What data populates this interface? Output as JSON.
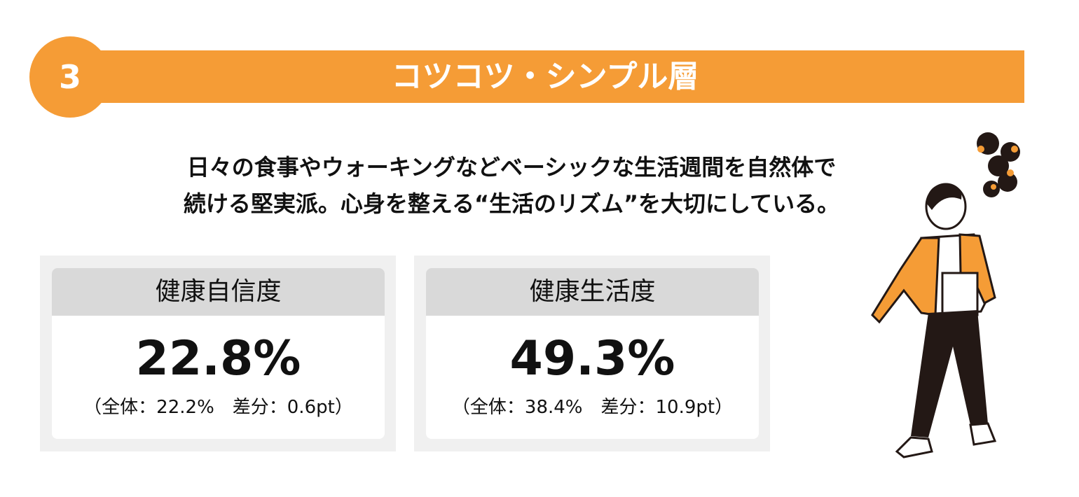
{
  "badge": "3",
  "title": "コツコツ・シンプル層",
  "description": [
    "日々の食事やウォーキングなどベーシックな生活週間を自然体で",
    "続ける堅実派。心身を整える“生活のリズム”を大切にしている。"
  ],
  "cards": [
    {
      "title": "健康自信度",
      "value": "22.8%",
      "note": "（全体：22.2%　差分：0.6pt）"
    },
    {
      "title": "健康生活度",
      "value": "49.3%",
      "note": "（全体：38.4%　差分：10.9pt）"
    }
  ]
}
